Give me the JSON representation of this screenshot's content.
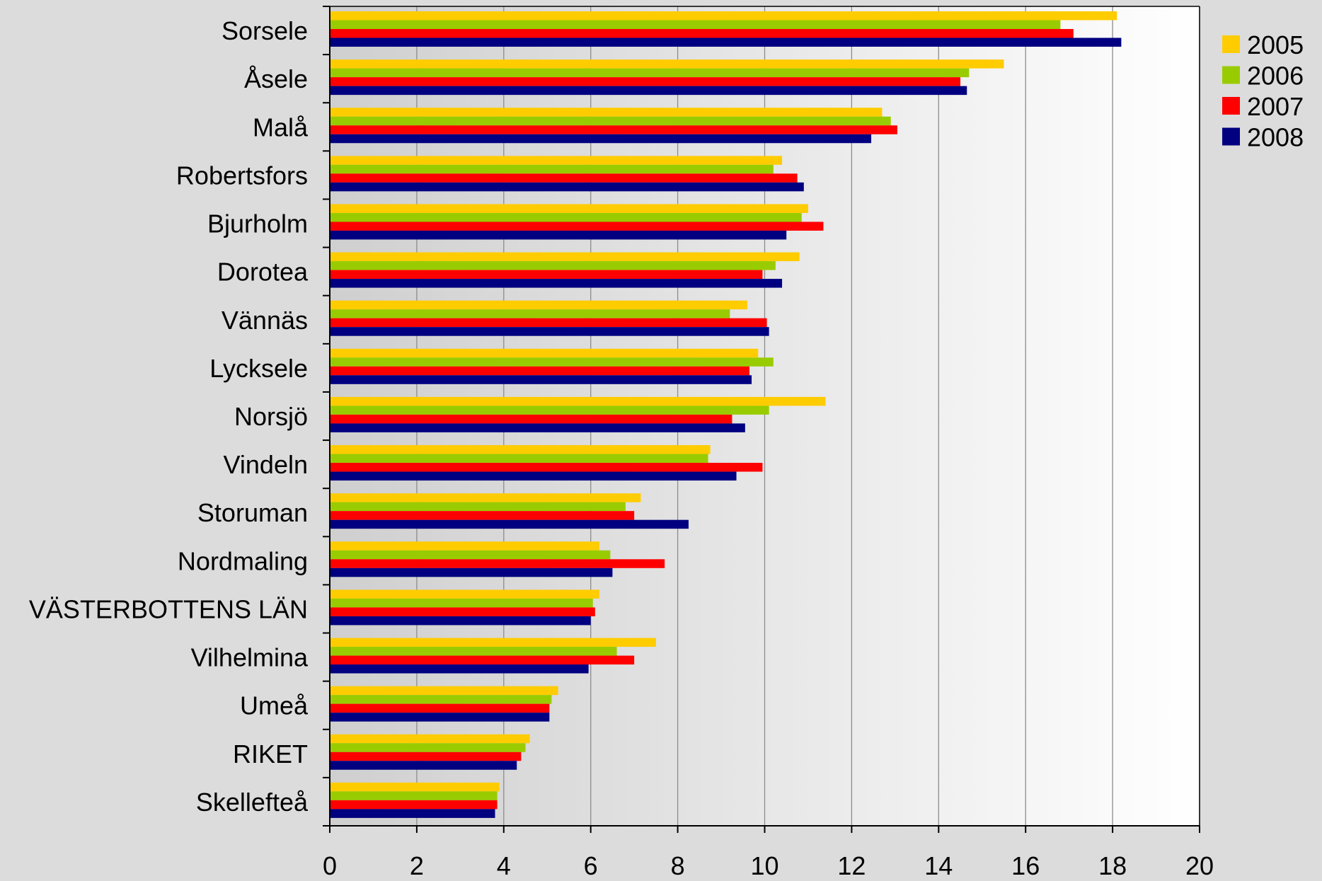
{
  "chart_data": {
    "type": "bar",
    "orientation": "horizontal",
    "title": "",
    "xlabel": "",
    "ylabel": "",
    "xlim": [
      0,
      20
    ],
    "x_ticks": [
      0,
      2,
      4,
      6,
      8,
      10,
      12,
      14,
      16,
      18,
      20
    ],
    "grid": "vertical",
    "legend_position": "top-right",
    "categories": [
      "Sorsele",
      "Åsele",
      "Malå",
      "Robertsfors",
      "Bjurholm",
      "Dorotea",
      "Vännäs",
      "Lycksele",
      "Norsjö",
      "Vindeln",
      "Storuman",
      "Nordmaling",
      "VÄSTERBOTTENS LÄN",
      "Vilhelmina",
      "Umeå",
      "RIKET",
      "Skellefteå"
    ],
    "series": [
      {
        "name": "2005",
        "color": "#ffcc00",
        "values": [
          18.1,
          15.5,
          12.7,
          10.4,
          11.0,
          10.8,
          9.6,
          9.85,
          11.4,
          8.75,
          7.15,
          6.2,
          6.2,
          7.5,
          5.25,
          4.6,
          3.9
        ]
      },
      {
        "name": "2006",
        "color": "#99cc00",
        "values": [
          16.8,
          14.7,
          12.9,
          10.2,
          10.85,
          10.25,
          9.2,
          10.2,
          10.1,
          8.7,
          6.8,
          6.45,
          6.05,
          6.6,
          5.1,
          4.5,
          3.85
        ]
      },
      {
        "name": "2007",
        "color": "#ff0000",
        "values": [
          17.1,
          14.5,
          13.05,
          10.75,
          11.35,
          9.95,
          10.05,
          9.65,
          9.25,
          9.95,
          7.0,
          7.7,
          6.1,
          7.0,
          5.05,
          4.4,
          3.85
        ]
      },
      {
        "name": "2008",
        "color": "#000080",
        "values": [
          18.2,
          14.65,
          12.45,
          10.9,
          10.5,
          10.4,
          10.1,
          9.7,
          9.55,
          9.35,
          8.25,
          6.5,
          6.0,
          5.95,
          5.05,
          4.3,
          3.8
        ]
      }
    ]
  }
}
